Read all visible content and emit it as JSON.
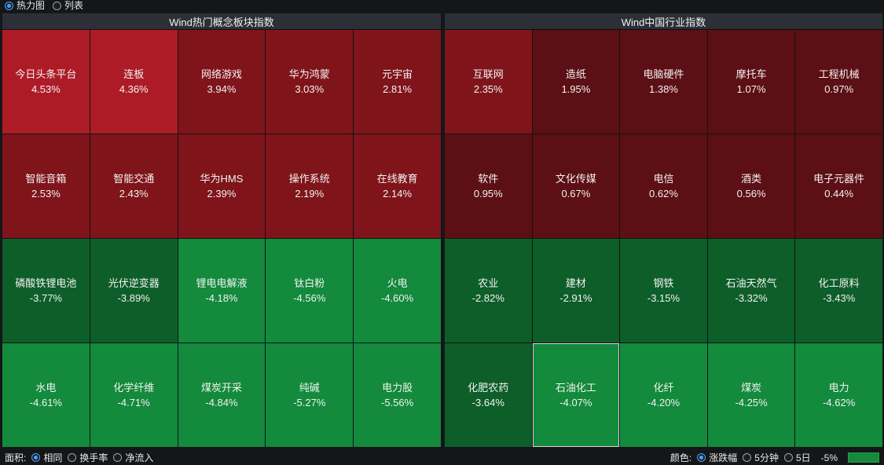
{
  "view_tabs": [
    {
      "label": "热力图",
      "selected": true
    },
    {
      "label": "列表",
      "selected": false
    }
  ],
  "colors": {
    "up_strong": "#ad1c26",
    "up_medium": "#7f141a",
    "up_weak": "#5c0f14",
    "down_strong": "#138a3c",
    "down_medium": "#0e5e29",
    "accent": "#4aa3ff"
  },
  "panels": [
    {
      "title": "Wind热门概念板块指数",
      "tiles": [
        {
          "name": "今日头条平台",
          "value": "4.53%",
          "color": "#ad1c26"
        },
        {
          "name": "连板",
          "value": "4.36%",
          "color": "#ad1c26"
        },
        {
          "name": "网络游戏",
          "value": "3.94%",
          "color": "#7f141a"
        },
        {
          "name": "华为鸿蒙",
          "value": "3.03%",
          "color": "#7f141a"
        },
        {
          "name": "元宇宙",
          "value": "2.81%",
          "color": "#7f141a"
        },
        {
          "name": "智能音箱",
          "value": "2.53%",
          "color": "#7f141a"
        },
        {
          "name": "智能交通",
          "value": "2.43%",
          "color": "#7f141a"
        },
        {
          "name": "华为HMS",
          "value": "2.39%",
          "color": "#7f141a"
        },
        {
          "name": "操作系统",
          "value": "2.19%",
          "color": "#7f141a"
        },
        {
          "name": "在线教育",
          "value": "2.14%",
          "color": "#7f141a"
        },
        {
          "name": "磷酸铁锂电池",
          "value": "-3.77%",
          "color": "#0e5e29"
        },
        {
          "name": "光伏逆变器",
          "value": "-3.89%",
          "color": "#0e5e29"
        },
        {
          "name": "锂电电解液",
          "value": "-4.18%",
          "color": "#138a3c"
        },
        {
          "name": "钛白粉",
          "value": "-4.56%",
          "color": "#138a3c"
        },
        {
          "name": "火电",
          "value": "-4.60%",
          "color": "#138a3c"
        },
        {
          "name": "水电",
          "value": "-4.61%",
          "color": "#138a3c"
        },
        {
          "name": "化学纤维",
          "value": "-4.71%",
          "color": "#138a3c"
        },
        {
          "name": "煤炭开采",
          "value": "-4.84%",
          "color": "#138a3c"
        },
        {
          "name": "纯碱",
          "value": "-5.27%",
          "color": "#138a3c"
        },
        {
          "name": "电力股",
          "value": "-5.56%",
          "color": "#138a3c"
        }
      ]
    },
    {
      "title": "Wind中国行业指数",
      "tiles": [
        {
          "name": "互联网",
          "value": "2.35%",
          "color": "#7f141a"
        },
        {
          "name": "造纸",
          "value": "1.95%",
          "color": "#5c0f14"
        },
        {
          "name": "电脑硬件",
          "value": "1.38%",
          "color": "#5c0f14"
        },
        {
          "name": "摩托车",
          "value": "1.07%",
          "color": "#5c0f14"
        },
        {
          "name": "工程机械",
          "value": "0.97%",
          "color": "#5c0f14"
        },
        {
          "name": "软件",
          "value": "0.95%",
          "color": "#5c0f14"
        },
        {
          "name": "文化传媒",
          "value": "0.67%",
          "color": "#5c0f14"
        },
        {
          "name": "电信",
          "value": "0.62%",
          "color": "#5c0f14"
        },
        {
          "name": "酒类",
          "value": "0.56%",
          "color": "#5c0f14"
        },
        {
          "name": "电子元器件",
          "value": "0.44%",
          "color": "#5c0f14"
        },
        {
          "name": "农业",
          "value": "-2.82%",
          "color": "#0e5e29"
        },
        {
          "name": "建材",
          "value": "-2.91%",
          "color": "#0e5e29"
        },
        {
          "name": "钢铁",
          "value": "-3.15%",
          "color": "#0e5e29"
        },
        {
          "name": "石油天然气",
          "value": "-3.32%",
          "color": "#0e5e29"
        },
        {
          "name": "化工原料",
          "value": "-3.43%",
          "color": "#0e5e29"
        },
        {
          "name": "化肥农药",
          "value": "-3.64%",
          "color": "#0e5e29"
        },
        {
          "name": "石油化工",
          "value": "-4.07%",
          "color": "#138a3c",
          "selected": true
        },
        {
          "name": "化纤",
          "value": "-4.20%",
          "color": "#138a3c"
        },
        {
          "name": "煤炭",
          "value": "-4.25%",
          "color": "#138a3c"
        },
        {
          "name": "电力",
          "value": "-4.62%",
          "color": "#138a3c"
        }
      ]
    }
  ],
  "area_control": {
    "label": "面积:",
    "options": [
      {
        "label": "相同",
        "selected": true
      },
      {
        "label": "换手率",
        "selected": false
      },
      {
        "label": "净流入",
        "selected": false
      }
    ]
  },
  "color_control": {
    "label": "颜色:",
    "options": [
      {
        "label": "涨跌幅",
        "selected": true
      },
      {
        "label": "5分钟",
        "selected": false
      },
      {
        "label": "5日",
        "selected": false
      }
    ],
    "scale_label": "-5%"
  }
}
